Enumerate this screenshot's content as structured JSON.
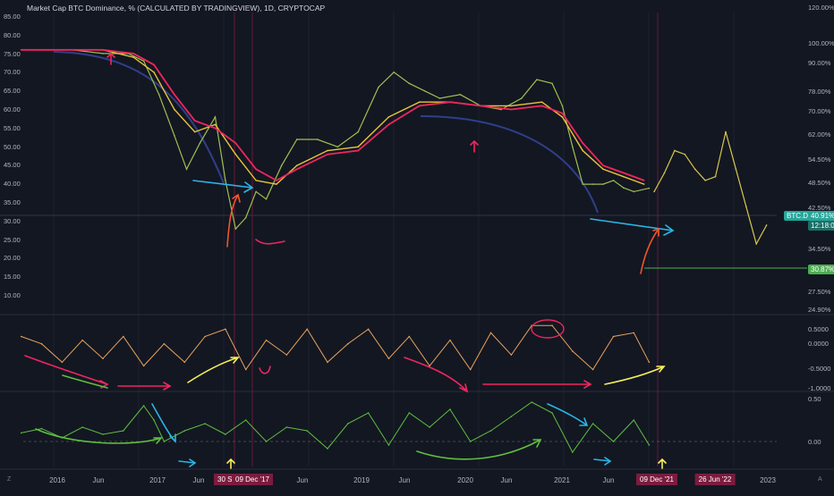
{
  "header": {
    "title": "Market Cap BTC Dominance, % (CALCULATED BY TRADINGVIEW), 1D, CRYPTOCAP"
  },
  "colors": {
    "bg": "#131722",
    "grid": "#1e222d",
    "price": "#d8c84a",
    "ma_fast": "#e9c53a",
    "ma_slow": "#f0265f",
    "curve": "#2f3f8a",
    "cyan_arrow": "#29b6e6",
    "red_arrow": "#f3542b",
    "osc1": "#e8a25c",
    "osc2": "#5fbf3f",
    "badge_price": "#26a69a",
    "badge_target": "#4caf50",
    "x_highlight": "#7b1c3f"
  },
  "price_badge": {
    "label": "BTC.D",
    "value": "40.91%",
    "countdown": "12:18:07"
  },
  "target_badge": {
    "value": "30.87%"
  },
  "x_axis": {
    "ticks": [
      "2016",
      "Jun",
      "2017",
      "Jun",
      "Jun",
      "2019",
      "Jun",
      "2020",
      "Jun",
      "2021",
      "Jun",
      "Jun",
      "2023"
    ],
    "highlights": [
      "30 Sep '16",
      "09 Dec '17",
      "09 Dec '21",
      "26 Jun '22"
    ],
    "corner_left": "Z",
    "corner_right": "A"
  },
  "chart_data": [
    {
      "type": "line",
      "panel": "main",
      "left_axis_ticks": [
        "85.00",
        "80.00",
        "75.00",
        "70.00",
        "65.00",
        "60.00",
        "55.00",
        "50.00",
        "45.00",
        "40.00",
        "35.00",
        "30.00",
        "25.00",
        "20.00",
        "15.00",
        "10.00"
      ],
      "right_axis_ticks": [
        "120.00%",
        "100.00%",
        "90.00%",
        "78.00%",
        "70.00%",
        "62.00%",
        "54.50%",
        "48.50%",
        "42.50%",
        "34.50%",
        "27.50%",
        "24.90%"
      ],
      "ylim": [
        8,
        88
      ],
      "series": [
        {
          "x": [
            2015.8,
            2016.0,
            2016.3,
            2016.6,
            2016.85,
            2017.0,
            2017.15,
            2017.3,
            2017.42,
            2017.55,
            2017.7,
            2017.8,
            2017.9,
            2018.0,
            2018.1,
            2018.2,
            2018.35,
            2018.5,
            2018.7,
            2018.9,
            2019.1,
            2019.3,
            2019.45,
            2019.6,
            2019.75,
            2019.9,
            2020.1,
            2020.3,
            2020.5,
            2020.7,
            2020.85,
            2021.0,
            2021.1,
            2021.2,
            2021.3,
            2021.4,
            2021.5,
            2021.6,
            2021.7,
            2021.8,
            2021.95
          ],
          "values": [
            78,
            78,
            78,
            77,
            77,
            75,
            66,
            55,
            46,
            53,
            60,
            43,
            30,
            33,
            40,
            38,
            47,
            54,
            54,
            52,
            56,
            68,
            72,
            69,
            67,
            65,
            66,
            63,
            62,
            65,
            70,
            69,
            63,
            52,
            42,
            42,
            42,
            43,
            41,
            40,
            40.9
          ]
        },
        {
          "x": [
            2022.0,
            2022.1,
            2022.2,
            2022.3,
            2022.4,
            2022.5,
            2022.6,
            2022.7,
            2022.8,
            2022.9,
            2023.0,
            2023.1
          ],
          "values": [
            40,
            45,
            51,
            50,
            46,
            43,
            44,
            56,
            46,
            36,
            26,
            31
          ]
        },
        {
          "x": [
            2015.8,
            2016.6,
            2016.9,
            2017.1,
            2017.3,
            2017.5,
            2017.7,
            2017.9,
            2018.1,
            2018.3,
            2018.5,
            2018.8,
            2019.1,
            2019.4,
            2019.7,
            2020.0,
            2020.3,
            2020.6,
            2020.9,
            2021.1,
            2021.3,
            2021.5,
            2021.7,
            2021.9
          ],
          "values": [
            78,
            78,
            76,
            72,
            62,
            56,
            58,
            50,
            43,
            42,
            47,
            51,
            52,
            60,
            64,
            64,
            63,
            63,
            64,
            60,
            51,
            46,
            44,
            42
          ]
        },
        {
          "x": [
            2015.8,
            2016.6,
            2016.9,
            2017.1,
            2017.3,
            2017.5,
            2017.7,
            2017.9,
            2018.1,
            2018.3,
            2018.5,
            2018.8,
            2019.1,
            2019.4,
            2019.7,
            2020.0,
            2020.3,
            2020.6,
            2020.9,
            2021.1,
            2021.3,
            2021.5,
            2021.7,
            2021.9
          ],
          "values": [
            78,
            78,
            77,
            74,
            66,
            59,
            57,
            53,
            46,
            43,
            46,
            50,
            51,
            58,
            63,
            64,
            63,
            62,
            63,
            61,
            53,
            47,
            45,
            43
          ]
        }
      ]
    },
    {
      "type": "line",
      "panel": "oscillator_1",
      "axis_ticks": [
        "0.5000",
        "0.0000",
        "-0.5000",
        "-1.0000"
      ],
      "ylim": [
        -1.1,
        0.8
      ],
      "series": [
        {
          "x": [
            2015.8,
            2016.0,
            2016.2,
            2016.4,
            2016.6,
            2016.8,
            2017.0,
            2017.2,
            2017.4,
            2017.6,
            2017.8,
            2018.0,
            2018.2,
            2018.4,
            2018.6,
            2018.8,
            2019.0,
            2019.2,
            2019.4,
            2019.6,
            2019.8,
            2020.0,
            2020.2,
            2020.4,
            2020.6,
            2020.8,
            2021.0,
            2021.2,
            2021.4,
            2021.6,
            2021.8,
            2021.95
          ],
          "values": [
            0.3,
            0.1,
            -0.4,
            0.2,
            -0.3,
            0.3,
            -0.5,
            0.1,
            -0.4,
            0.3,
            0.5,
            -0.6,
            0.2,
            -0.2,
            0.5,
            -0.4,
            0.1,
            0.5,
            -0.3,
            0.3,
            -0.5,
            0.2,
            -0.6,
            0.4,
            -0.2,
            0.6,
            0.6,
            -0.1,
            -0.6,
            0.3,
            0.4,
            -0.4
          ]
        }
      ]
    },
    {
      "type": "line",
      "panel": "oscillator_2",
      "axis_ticks": [
        "0.50",
        "0.00"
      ],
      "ylim": [
        -0.45,
        0.55
      ],
      "series": [
        {
          "x": [
            2015.8,
            2016.0,
            2016.2,
            2016.4,
            2016.6,
            2016.8,
            2017.0,
            2017.1,
            2017.2,
            2017.4,
            2017.6,
            2017.8,
            2018.0,
            2018.2,
            2018.4,
            2018.6,
            2018.8,
            2019.0,
            2019.2,
            2019.4,
            2019.6,
            2019.8,
            2020.0,
            2020.2,
            2020.4,
            2020.6,
            2020.8,
            2021.0,
            2021.2,
            2021.4,
            2021.6,
            2021.8,
            2021.95
          ],
          "values": [
            0.02,
            0.08,
            -0.05,
            0.1,
            0.0,
            0.05,
            0.4,
            0.2,
            -0.1,
            0.05,
            0.15,
            0.0,
            0.2,
            -0.1,
            0.1,
            0.05,
            -0.2,
            0.15,
            0.3,
            -0.15,
            0.3,
            0.1,
            0.35,
            -0.1,
            0.05,
            0.25,
            0.45,
            0.3,
            -0.25,
            0.15,
            -0.1,
            0.2,
            -0.15
          ]
        }
      ]
    }
  ]
}
